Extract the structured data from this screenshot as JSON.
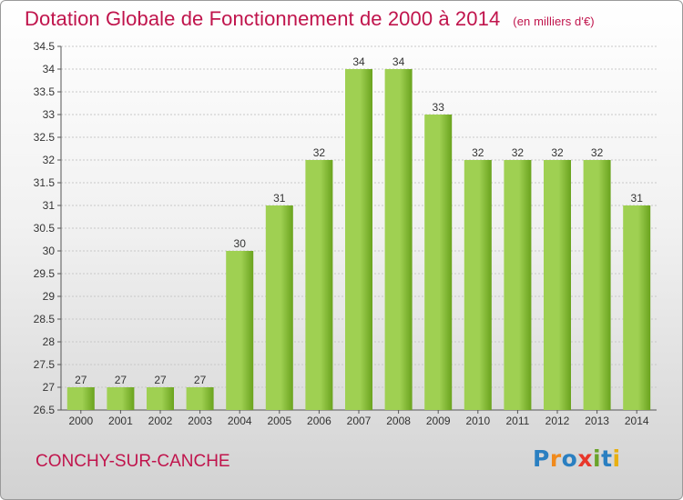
{
  "title": "Dotation Globale de Fonctionnement de 2000 à 2014",
  "unit": "(en milliers d'€)",
  "commune": "CONCHY-SUR-CANCHE",
  "logo": {
    "text": "Proxiti",
    "letters": [
      {
        "ch": "P",
        "color": "#2a7fc1"
      },
      {
        "ch": "r",
        "color": "#f08a1c"
      },
      {
        "ch": "o",
        "color": "#2a7fc1"
      },
      {
        "ch": "x",
        "color": "#e8372b"
      },
      {
        "ch": "i",
        "color": "#6aa32a"
      },
      {
        "ch": "t",
        "color": "#2a7fc1"
      },
      {
        "ch": "i",
        "color": "#e8b012"
      }
    ]
  },
  "colors": {
    "title": "#c0144c",
    "bar_light": "#9fd052",
    "bar_dark": "#6aa31e",
    "grid": "#c8c8c8",
    "axis_text": "#333333"
  },
  "chart_data": {
    "type": "bar",
    "title": "Dotation Globale de Fonctionnement de 2000 à 2014",
    "categories": [
      "2000",
      "2001",
      "2002",
      "2003",
      "2004",
      "2005",
      "2006",
      "2007",
      "2008",
      "2009",
      "2010",
      "2011",
      "2012",
      "2013",
      "2014"
    ],
    "values": [
      27,
      27,
      27,
      27,
      30,
      31,
      32,
      34,
      34,
      33,
      32,
      32,
      32,
      32,
      31
    ],
    "ylim": [
      26.5,
      34.5
    ],
    "yticks": [
      26.5,
      27,
      27.5,
      28,
      28.5,
      29,
      29.5,
      30,
      30.5,
      31,
      31.5,
      32,
      32.5,
      33,
      33.5,
      34,
      34.5
    ],
    "ytick_labels": [
      "26.5",
      "27",
      "27.5",
      "28",
      "28.5",
      "29",
      "29.5",
      "30",
      "30.5",
      "31",
      "31.5",
      "32",
      "32.5",
      "33",
      "33.5",
      "34",
      "34.5"
    ],
    "grid": true,
    "data_labels": true
  }
}
